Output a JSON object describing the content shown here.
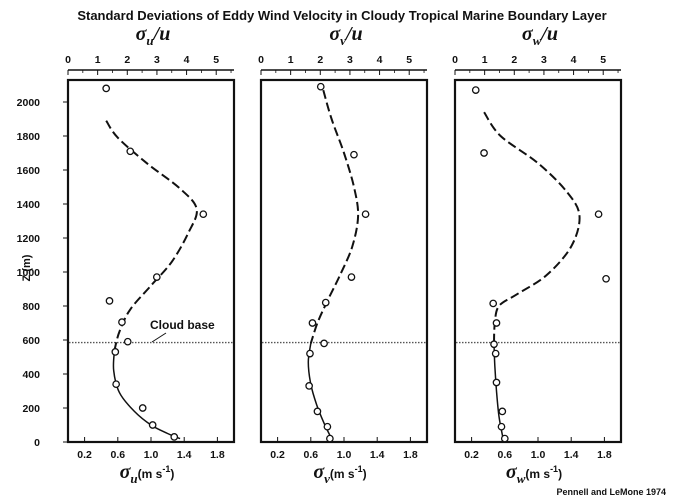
{
  "title": "Standard Deviations of Eddy Wind Velocity in Cloudy Tropical Marine Boundary Layer",
  "credit": "Pennell and LeMone 1974",
  "colors": {
    "ink": "#111111",
    "background": "#ffffff",
    "cloud_base_line": "#555555"
  },
  "chart_data": {
    "type": "scatter",
    "shared_y": {
      "label": "Z (m)",
      "range": [
        0,
        2100
      ],
      "ticks": [
        0,
        200,
        400,
        600,
        800,
        1000,
        1200,
        1400,
        1600,
        1800,
        2000
      ]
    },
    "cloud_base": {
      "label": "Cloud base",
      "z": 585
    },
    "panels": [
      {
        "id": "u",
        "top_axis": {
          "symbol": "σ",
          "sub": "u",
          "suffix": "/u",
          "range": [
            0,
            5.6
          ],
          "ticks": [
            0,
            1,
            2,
            3,
            4,
            5
          ]
        },
        "bottom_axis": {
          "symbol": "σ",
          "sub": "u",
          "unit": "(m s",
          "unit_exp": "-1",
          "unit_close": ")",
          "range": [
            0,
            2.0
          ],
          "ticks": [
            0.2,
            0.6,
            1.0,
            1.4,
            1.8
          ]
        },
        "points": [
          [
            0.46,
            2080
          ],
          [
            0.75,
            1710
          ],
          [
            1.63,
            1340
          ],
          [
            1.07,
            970
          ],
          [
            0.5,
            830
          ],
          [
            0.65,
            705
          ],
          [
            0.72,
            590
          ],
          [
            0.57,
            530
          ],
          [
            0.58,
            340
          ],
          [
            0.9,
            200
          ],
          [
            1.02,
            100
          ],
          [
            1.28,
            30
          ]
        ],
        "curve": [
          [
            0.46,
            1890
          ],
          [
            0.6,
            1790
          ],
          [
            0.95,
            1640
          ],
          [
            1.35,
            1490
          ],
          [
            1.55,
            1370
          ],
          [
            1.45,
            1230
          ],
          [
            1.25,
            1060
          ],
          [
            1.0,
            920
          ],
          [
            0.75,
            780
          ],
          [
            0.62,
            650
          ],
          [
            0.56,
            540
          ],
          [
            0.55,
            420
          ],
          [
            0.62,
            290
          ],
          [
            0.8,
            180
          ],
          [
            1.0,
            100
          ],
          [
            1.2,
            50
          ],
          [
            1.35,
            20
          ]
        ]
      },
      {
        "id": "v",
        "top_axis": {
          "symbol": "σ",
          "sub": "v",
          "suffix": "/u",
          "range": [
            0,
            5.6
          ],
          "ticks": [
            0,
            1,
            2,
            3,
            4,
            5
          ]
        },
        "bottom_axis": {
          "symbol": "σ",
          "sub": "v",
          "unit": "(m s",
          "unit_exp": "-1",
          "unit_close": ")",
          "range": [
            0,
            2.0
          ],
          "ticks": [
            0.2,
            0.6,
            1.0,
            1.4,
            1.8
          ]
        },
        "points": [
          [
            0.72,
            2090
          ],
          [
            1.12,
            1690
          ],
          [
            1.26,
            1340
          ],
          [
            1.09,
            970
          ],
          [
            0.78,
            820
          ],
          [
            0.62,
            700
          ],
          [
            0.76,
            580
          ],
          [
            0.59,
            520
          ],
          [
            0.58,
            330
          ],
          [
            0.68,
            180
          ],
          [
            0.8,
            90
          ],
          [
            0.83,
            20
          ]
        ],
        "curve": [
          [
            0.75,
            2070
          ],
          [
            0.85,
            1900
          ],
          [
            1.0,
            1700
          ],
          [
            1.12,
            1500
          ],
          [
            1.17,
            1330
          ],
          [
            1.1,
            1150
          ],
          [
            0.95,
            980
          ],
          [
            0.8,
            830
          ],
          [
            0.68,
            700
          ],
          [
            0.6,
            580
          ],
          [
            0.57,
            470
          ],
          [
            0.6,
            340
          ],
          [
            0.67,
            220
          ],
          [
            0.76,
            110
          ],
          [
            0.85,
            20
          ]
        ]
      },
      {
        "id": "w",
        "top_axis": {
          "symbol": "σ",
          "sub": "w",
          "suffix": "/u",
          "range": [
            0,
            5.6
          ],
          "ticks": [
            0,
            1,
            2,
            3,
            4,
            5
          ]
        },
        "bottom_axis": {
          "symbol": "σ",
          "sub": "w",
          "unit": "(m s",
          "unit_exp": "-1",
          "unit_close": ")",
          "range": [
            0,
            2.0
          ],
          "ticks": [
            0.2,
            0.6,
            1.0,
            1.4,
            1.8
          ]
        },
        "points": [
          [
            0.25,
            2070
          ],
          [
            0.35,
            1700
          ],
          [
            1.73,
            1340
          ],
          [
            1.82,
            960
          ],
          [
            0.46,
            815
          ],
          [
            0.5,
            700
          ],
          [
            0.47,
            575
          ],
          [
            0.49,
            520
          ],
          [
            0.5,
            350
          ],
          [
            0.57,
            180
          ],
          [
            0.56,
            90
          ],
          [
            0.6,
            20
          ]
        ],
        "curve": [
          [
            0.35,
            1940
          ],
          [
            0.55,
            1800
          ],
          [
            1.0,
            1640
          ],
          [
            1.35,
            1470
          ],
          [
            1.5,
            1330
          ],
          [
            1.4,
            1150
          ],
          [
            1.1,
            980
          ],
          [
            0.75,
            870
          ],
          [
            0.53,
            800
          ],
          [
            0.48,
            700
          ],
          [
            0.47,
            580
          ],
          [
            0.48,
            450
          ],
          [
            0.5,
            300
          ],
          [
            0.53,
            150
          ],
          [
            0.58,
            20
          ]
        ]
      }
    ]
  }
}
